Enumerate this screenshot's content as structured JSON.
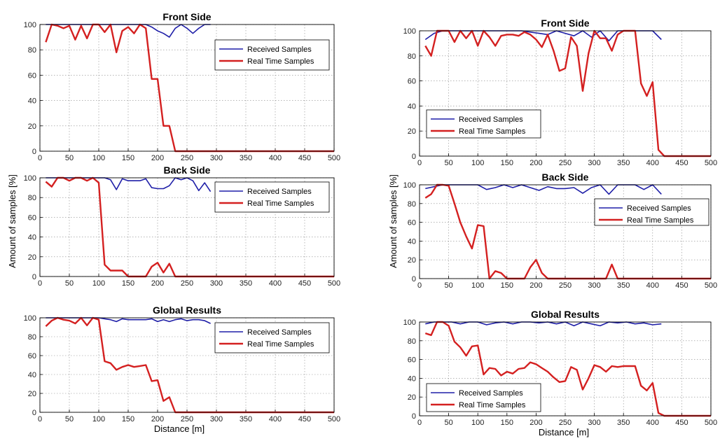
{
  "colors": {
    "received": "#1f1fa8",
    "realtime": "#d42020",
    "grid": "#8a8a8a",
    "axis": "#000000"
  },
  "figures": [
    {
      "ylabel": "Amount of samples [%]",
      "xlabel": "Distance [m]"
    },
    {
      "ylabel": "Amount of samples [%]",
      "xlabel": "Distance [m]"
    }
  ],
  "chart_data": [
    {
      "type": "line",
      "title": "Front Side",
      "xlabel": "",
      "ylabel": "",
      "xlim": [
        0,
        500
      ],
      "ylim": [
        0,
        100
      ],
      "xticks": [
        "0",
        "50",
        "100",
        "150",
        "200",
        "250",
        "300",
        "350",
        "400",
        "450",
        "500"
      ],
      "yticks": [
        "0",
        "20",
        "40",
        "60",
        "80",
        "100"
      ],
      "grid": true,
      "legend": "top-right",
      "series": [
        {
          "name": "Received Samples",
          "x": [
            10,
            20,
            30,
            40,
            50,
            60,
            70,
            80,
            90,
            100,
            110,
            120,
            130,
            140,
            150,
            160,
            170,
            180,
            190,
            200,
            210,
            220,
            230,
            240,
            250,
            260,
            270,
            280,
            290
          ],
          "y": [
            100,
            100,
            100,
            100,
            100,
            100,
            100,
            100,
            100,
            100,
            100,
            100,
            100,
            100,
            100,
            100,
            100,
            100,
            98,
            95,
            93,
            90,
            97,
            100,
            97,
            93,
            97,
            100,
            100
          ]
        },
        {
          "name": "Real Time Samples",
          "x": [
            10,
            20,
            30,
            40,
            50,
            60,
            70,
            80,
            90,
            100,
            110,
            120,
            130,
            140,
            150,
            160,
            170,
            180,
            190,
            200,
            210,
            220,
            230,
            240,
            260,
            280,
            300,
            350,
            400,
            450,
            500
          ],
          "y": [
            86,
            100,
            99,
            97,
            99,
            88,
            99,
            89,
            100,
            100,
            94,
            100,
            78,
            95,
            98,
            93,
            100,
            97,
            57,
            57,
            20,
            20,
            0,
            0,
            0,
            0,
            0,
            0,
            0,
            0,
            0
          ]
        }
      ]
    },
    {
      "type": "line",
      "title": "Back Side",
      "xlabel": "",
      "ylabel": "",
      "xlim": [
        0,
        500
      ],
      "ylim": [
        0,
        100
      ],
      "xticks": [
        "0",
        "50",
        "100",
        "150",
        "200",
        "250",
        "300",
        "350",
        "400",
        "450",
        "500"
      ],
      "yticks": [
        "0",
        "20",
        "40",
        "60",
        "80",
        "100"
      ],
      "grid": true,
      "legend": "top-right",
      "series": [
        {
          "name": "Received Samples",
          "x": [
            10,
            20,
            30,
            40,
            50,
            60,
            70,
            80,
            90,
            100,
            110,
            120,
            130,
            140,
            150,
            160,
            170,
            180,
            190,
            200,
            210,
            220,
            230,
            240,
            250,
            260,
            270,
            280,
            290
          ],
          "y": [
            100,
            100,
            100,
            100,
            100,
            100,
            100,
            100,
            100,
            100,
            100,
            98,
            88,
            99,
            97,
            97,
            97,
            99,
            90,
            89,
            89,
            92,
            100,
            98,
            100,
            97,
            87,
            95,
            86
          ]
        },
        {
          "name": "Real Time Samples",
          "x": [
            10,
            20,
            30,
            40,
            50,
            60,
            70,
            80,
            90,
            100,
            110,
            120,
            130,
            140,
            150,
            160,
            170,
            180,
            190,
            200,
            210,
            220,
            230,
            250,
            300,
            350,
            400,
            450,
            500
          ],
          "y": [
            96,
            91,
            100,
            100,
            97,
            100,
            100,
            97,
            100,
            95,
            12,
            6,
            6,
            6,
            0,
            0,
            0,
            0,
            10,
            14,
            4,
            13,
            0,
            0,
            0,
            0,
            0,
            0,
            0
          ]
        }
      ]
    },
    {
      "type": "line",
      "title": "Global Results",
      "xlabel": "",
      "ylabel": "",
      "xlim": [
        0,
        500
      ],
      "ylim": [
        0,
        100
      ],
      "xticks": [
        "0",
        "50",
        "100",
        "150",
        "200",
        "250",
        "300",
        "350",
        "400",
        "450",
        "500"
      ],
      "yticks": [
        "0",
        "20",
        "40",
        "60",
        "80",
        "100"
      ],
      "grid": true,
      "legend": "top-right",
      "series": [
        {
          "name": "Received Samples",
          "x": [
            10,
            20,
            30,
            40,
            50,
            60,
            70,
            80,
            90,
            100,
            110,
            120,
            130,
            140,
            150,
            160,
            170,
            180,
            190,
            200,
            210,
            220,
            230,
            240,
            250,
            260,
            270,
            280,
            290
          ],
          "y": [
            100,
            100,
            100,
            100,
            100,
            100,
            100,
            100,
            100,
            100,
            99,
            98,
            96,
            99,
            98,
            98,
            98,
            98,
            99,
            96,
            98,
            96,
            98,
            99,
            97,
            98,
            98,
            97,
            94
          ]
        },
        {
          "name": "Real Time Samples",
          "x": [
            10,
            20,
            30,
            40,
            50,
            60,
            70,
            80,
            90,
            100,
            110,
            120,
            130,
            140,
            150,
            160,
            170,
            180,
            190,
            200,
            210,
            220,
            230,
            250,
            300,
            350,
            400,
            450,
            500
          ],
          "y": [
            91,
            97,
            100,
            98,
            97,
            94,
            100,
            92,
            100,
            98,
            54,
            52,
            45,
            48,
            50,
            48,
            49,
            50,
            33,
            34,
            12,
            16,
            0,
            0,
            0,
            0,
            0,
            0,
            0
          ]
        }
      ]
    },
    {
      "type": "line",
      "title": "Front Side",
      "xlabel": "",
      "ylabel": "",
      "xlim": [
        0,
        500
      ],
      "ylim": [
        0,
        100
      ],
      "xticks": [
        "0",
        "50",
        "100",
        "150",
        "200",
        "250",
        "300",
        "350",
        "400",
        "450",
        "500"
      ],
      "yticks": [
        "0",
        "20",
        "40",
        "60",
        "80",
        "100"
      ],
      "grid": true,
      "legend": "center-right",
      "series": [
        {
          "name": "Received Samples",
          "x": [
            10,
            25,
            40,
            55,
            70,
            85,
            100,
            115,
            130,
            145,
            160,
            175,
            190,
            205,
            220,
            235,
            250,
            265,
            280,
            295,
            310,
            325,
            340,
            355,
            370,
            385,
            400,
            415
          ],
          "y": [
            93,
            98,
            100,
            100,
            100,
            100,
            100,
            100,
            100,
            100,
            100,
            100,
            99,
            98,
            97,
            100,
            98,
            96,
            100,
            95,
            100,
            92,
            100,
            100,
            100,
            100,
            100,
            93
          ]
        },
        {
          "name": "Real Time Samples",
          "x": [
            10,
            20,
            30,
            40,
            50,
            60,
            70,
            80,
            90,
            100,
            110,
            120,
            130,
            140,
            150,
            160,
            170,
            180,
            190,
            200,
            210,
            220,
            230,
            240,
            250,
            260,
            270,
            280,
            290,
            300,
            310,
            320,
            330,
            340,
            350,
            360,
            370,
            380,
            390,
            400,
            410,
            420,
            450,
            500
          ],
          "y": [
            88,
            80,
            100,
            100,
            100,
            91,
            100,
            94,
            100,
            88,
            100,
            95,
            88,
            96,
            97,
            97,
            96,
            99,
            97,
            93,
            87,
            97,
            84,
            68,
            70,
            95,
            88,
            52,
            82,
            100,
            94,
            94,
            84,
            97,
            100,
            100,
            100,
            58,
            48,
            59,
            5,
            0,
            0,
            0
          ]
        }
      ]
    },
    {
      "type": "line",
      "title": "Back Side",
      "xlabel": "",
      "ylabel": "",
      "xlim": [
        0,
        500
      ],
      "ylim": [
        0,
        100
      ],
      "xticks": [
        "0",
        "50",
        "100",
        "150",
        "200",
        "250",
        "300",
        "350",
        "400",
        "450",
        "500"
      ],
      "yticks": [
        "0",
        "20",
        "40",
        "60",
        "80",
        "100"
      ],
      "grid": true,
      "legend": "center-right",
      "series": [
        {
          "name": "Received Samples",
          "x": [
            10,
            25,
            40,
            55,
            70,
            85,
            100,
            115,
            130,
            145,
            160,
            175,
            190,
            205,
            220,
            235,
            250,
            265,
            280,
            295,
            310,
            325,
            340,
            355,
            370,
            385,
            400,
            415
          ],
          "y": [
            96,
            98,
            100,
            100,
            100,
            100,
            100,
            95,
            97,
            100,
            97,
            100,
            97,
            94,
            98,
            96,
            96,
            97,
            91,
            97,
            100,
            90,
            100,
            100,
            100,
            95,
            100,
            90
          ]
        },
        {
          "name": "Real Time Samples",
          "x": [
            10,
            20,
            30,
            40,
            50,
            60,
            70,
            80,
            90,
            100,
            110,
            120,
            130,
            140,
            150,
            160,
            170,
            180,
            190,
            200,
            210,
            220,
            230,
            240,
            250,
            260,
            270,
            280,
            290,
            300,
            310,
            320,
            330,
            340,
            350,
            400,
            450,
            500
          ],
          "y": [
            86,
            90,
            100,
            100,
            99,
            80,
            60,
            45,
            32,
            57,
            56,
            0,
            8,
            6,
            0,
            0,
            0,
            0,
            12,
            20,
            6,
            0,
            0,
            0,
            0,
            0,
            0,
            0,
            0,
            0,
            0,
            0,
            15,
            0,
            0,
            0,
            0,
            0
          ]
        }
      ]
    },
    {
      "type": "line",
      "title": "Global Results",
      "xlabel": "",
      "ylabel": "",
      "xlim": [
        0,
        500
      ],
      "ylim": [
        0,
        100
      ],
      "xticks": [
        "0",
        "50",
        "100",
        "150",
        "200",
        "250",
        "300",
        "350",
        "400",
        "450",
        "500"
      ],
      "yticks": [
        "0",
        "20",
        "40",
        "60",
        "80",
        "100"
      ],
      "grid": true,
      "legend": "bottom-right",
      "series": [
        {
          "name": "Received Samples",
          "x": [
            10,
            25,
            40,
            55,
            70,
            85,
            100,
            115,
            130,
            145,
            160,
            175,
            190,
            205,
            220,
            235,
            250,
            265,
            280,
            295,
            310,
            325,
            340,
            355,
            370,
            385,
            400,
            415
          ],
          "y": [
            98,
            100,
            100,
            100,
            98,
            100,
            100,
            97,
            99,
            100,
            98,
            100,
            100,
            99,
            100,
            98,
            100,
            96,
            100,
            98,
            96,
            100,
            99,
            100,
            98,
            99,
            97,
            98
          ]
        },
        {
          "name": "Real Time Samples",
          "x": [
            10,
            20,
            30,
            40,
            50,
            60,
            70,
            80,
            90,
            100,
            110,
            120,
            130,
            140,
            150,
            160,
            170,
            180,
            190,
            200,
            210,
            220,
            230,
            240,
            250,
            260,
            270,
            280,
            290,
            300,
            310,
            320,
            330,
            340,
            350,
            360,
            370,
            380,
            390,
            400,
            410,
            420,
            450,
            500
          ],
          "y": [
            88,
            86,
            100,
            100,
            96,
            79,
            73,
            64,
            74,
            75,
            44,
            51,
            50,
            43,
            47,
            45,
            50,
            51,
            57,
            55,
            51,
            47,
            41,
            36,
            37,
            52,
            49,
            28,
            40,
            54,
            52,
            47,
            53,
            52,
            53,
            53,
            53,
            32,
            27,
            35,
            3,
            0,
            0,
            0
          ]
        }
      ]
    }
  ]
}
